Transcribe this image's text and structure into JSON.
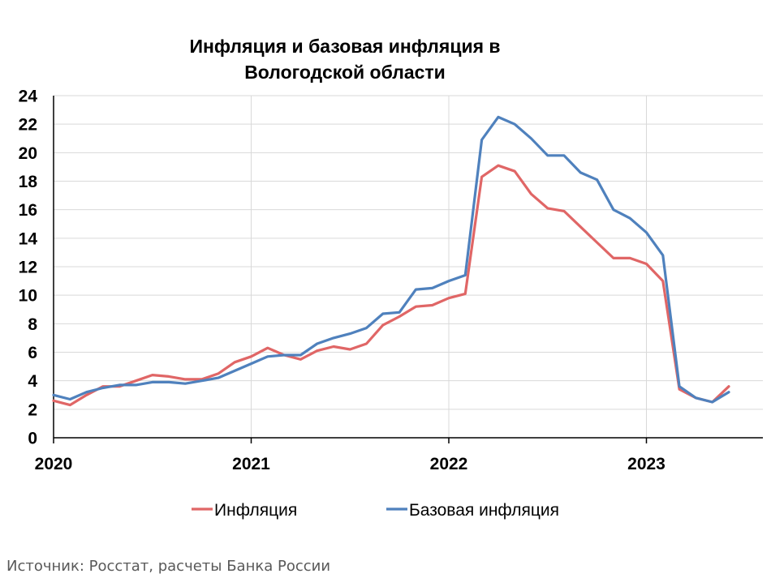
{
  "chart_data": {
    "type": "line",
    "title_lines": [
      "Инфляция и базовая инфляция в",
      "Вологодской области"
    ],
    "ylim": [
      0,
      24
    ],
    "yticks": [
      0,
      2,
      4,
      6,
      8,
      10,
      12,
      14,
      16,
      18,
      20,
      22,
      24
    ],
    "x_year_ticks": [
      "2020",
      "2021",
      "2022",
      "2023"
    ],
    "x_start": "2020-01",
    "grid": true,
    "legend_position": "bottom",
    "series": [
      {
        "name": "Инфляция",
        "color": "#e06666",
        "values": [
          2.6,
          2.3,
          3.0,
          3.6,
          3.6,
          4.0,
          4.4,
          4.3,
          4.1,
          4.1,
          4.5,
          5.3,
          5.7,
          6.3,
          5.8,
          5.5,
          6.1,
          6.4,
          6.2,
          6.6,
          7.9,
          8.5,
          9.2,
          9.3,
          9.8,
          10.1,
          18.3,
          19.1,
          18.7,
          17.1,
          16.1,
          15.9,
          14.8,
          13.7,
          12.6,
          12.6,
          12.2,
          11.0,
          3.4,
          2.8,
          2.5,
          3.6
        ]
      },
      {
        "name": "Базовая инфляция",
        "color": "#4f81bd",
        "values": [
          3.0,
          2.7,
          3.2,
          3.5,
          3.7,
          3.7,
          3.9,
          3.9,
          3.8,
          4.0,
          4.2,
          4.7,
          5.2,
          5.7,
          5.8,
          5.8,
          6.6,
          7.0,
          7.3,
          7.7,
          8.7,
          8.8,
          10.4,
          10.5,
          11.0,
          11.4,
          20.9,
          22.5,
          22.0,
          21.0,
          19.8,
          19.8,
          18.6,
          18.1,
          16.0,
          15.4,
          14.4,
          12.8,
          3.6,
          2.8,
          2.5,
          3.2
        ]
      }
    ]
  },
  "source_note": "Источник: Росстат, расчеты Банка России"
}
